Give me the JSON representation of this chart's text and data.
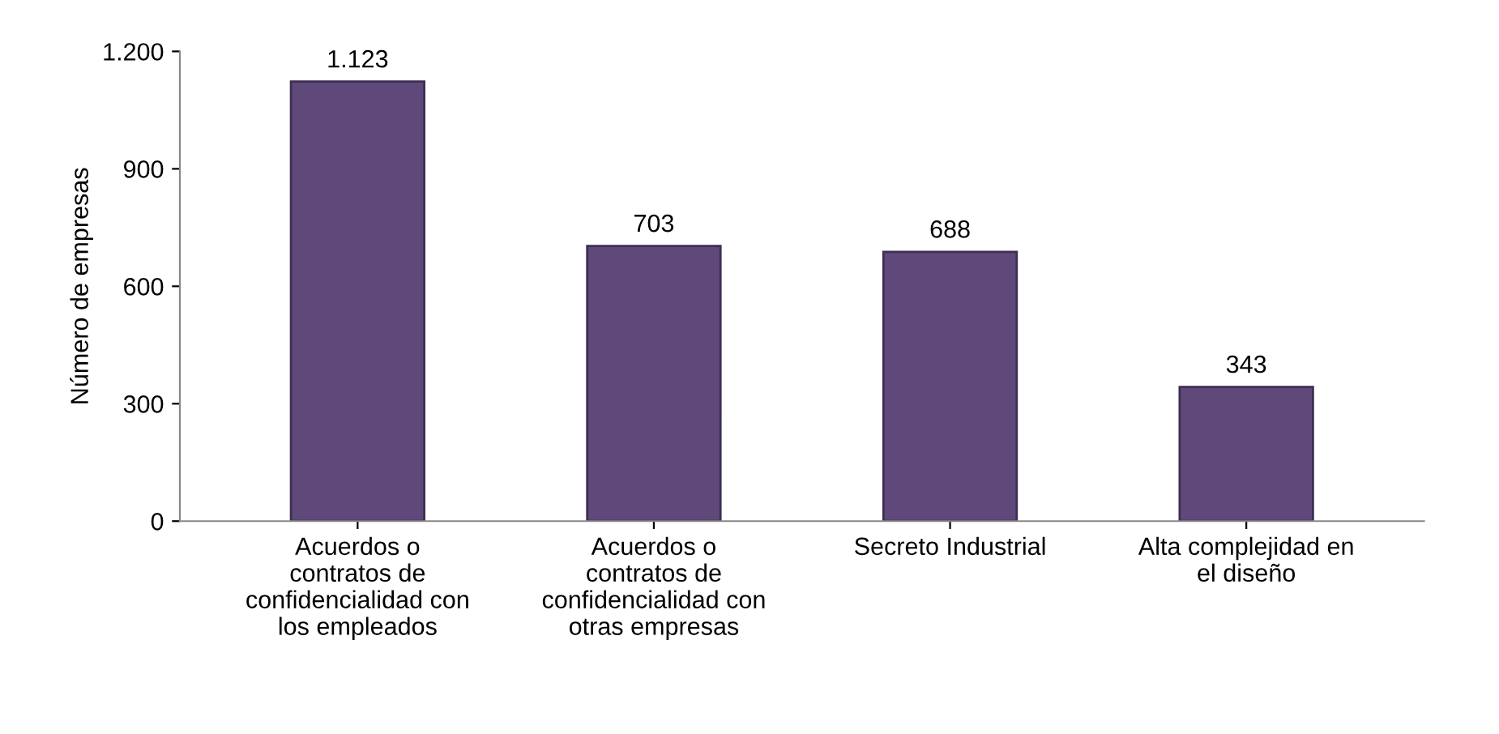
{
  "chart_data": {
    "type": "bar",
    "ylabel": "Número de empresas",
    "categories": [
      "Acuerdos o\ncontratos de\nconfidencialidad con\nlos empleados",
      "Acuerdos o\ncontratos de\nconfidencialidad con\notras empresas",
      "Secreto Industrial",
      "Alta complejidad en\nel diseño"
    ],
    "values": [
      1123,
      703,
      688,
      343
    ],
    "color": "#5f497a",
    "value_labels": [
      "1.123",
      "703",
      "688",
      "343"
    ],
    "ylim": [
      0,
      1200
    ],
    "yticks": [
      0,
      300,
      600,
      900,
      {
        "value": 1200,
        "label": "1.200"
      }
    ],
    "grid": false,
    "legend": false
  }
}
